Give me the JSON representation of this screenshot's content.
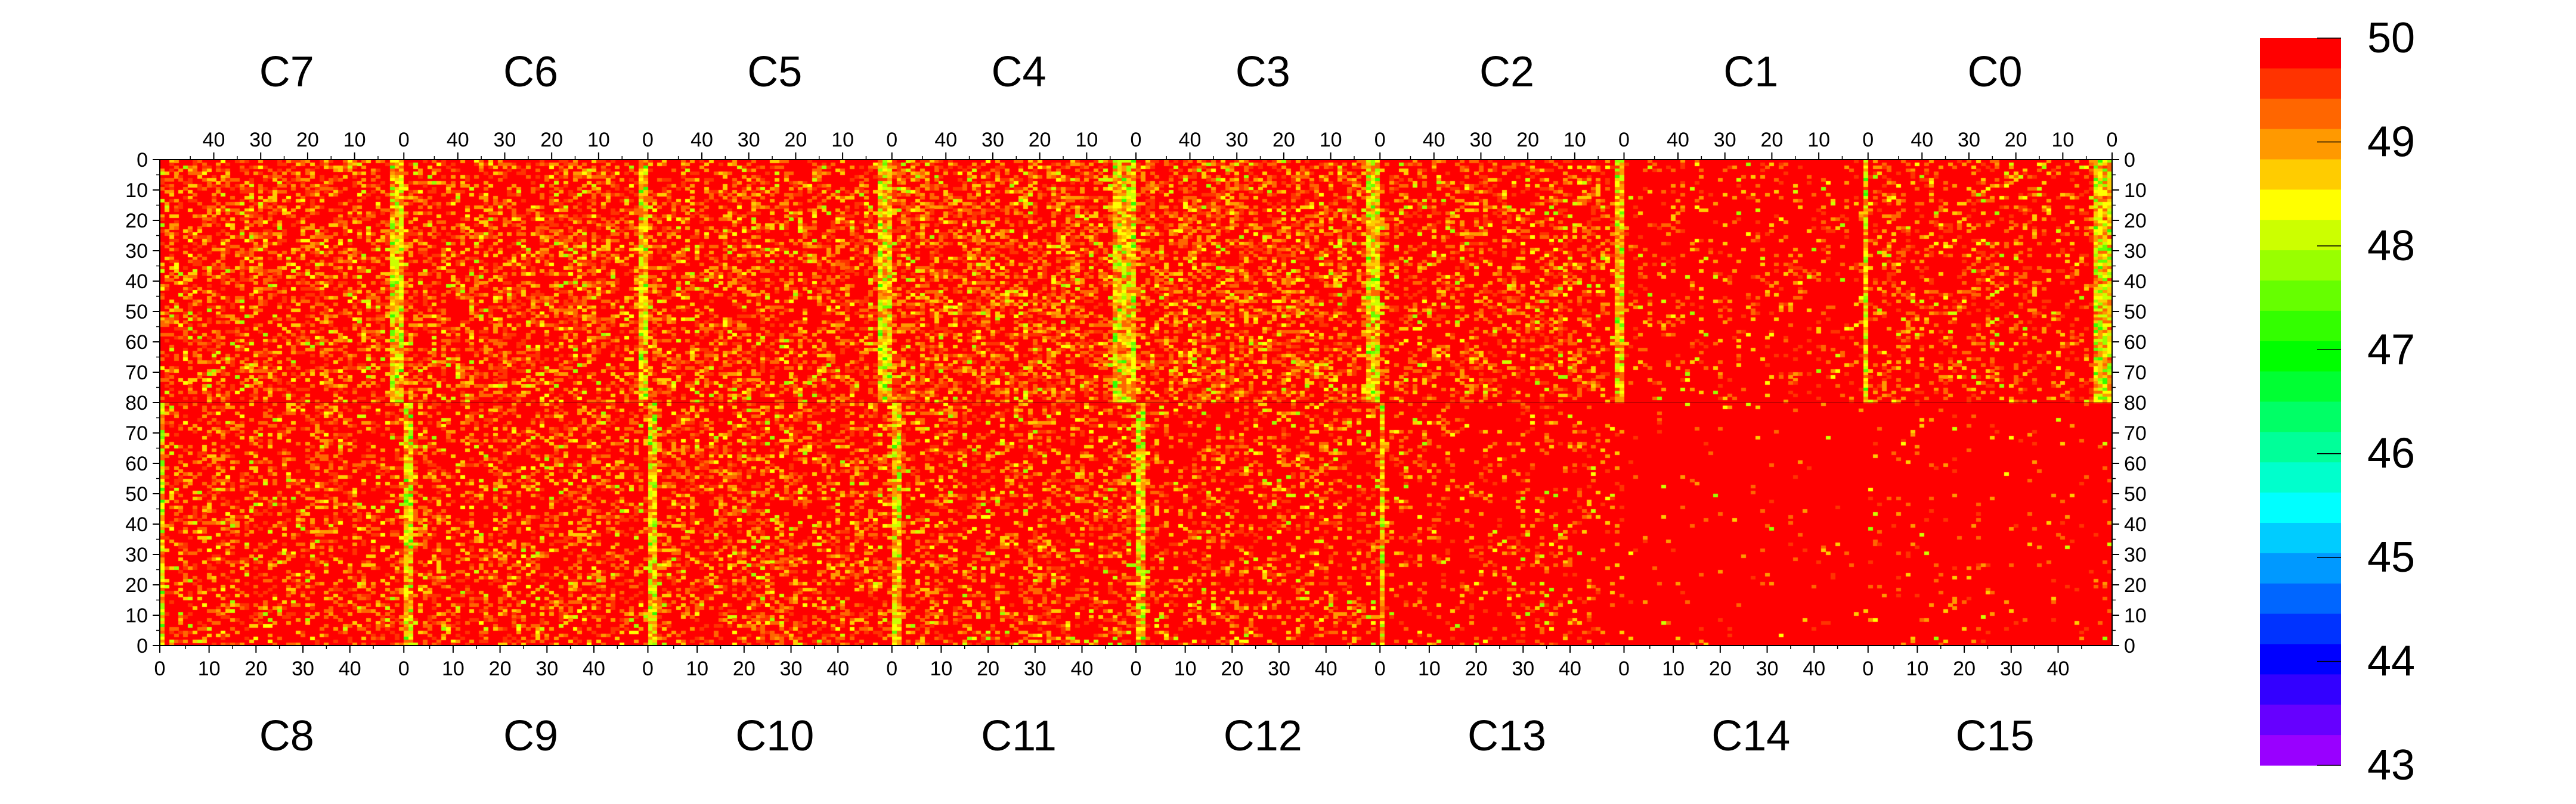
{
  "chart_data": {
    "type": "heatmap",
    "title": "",
    "xlabel": "",
    "ylabel": "",
    "top_chips": [
      "C7",
      "C6",
      "C5",
      "C4",
      "C3",
      "C2",
      "C1",
      "C0"
    ],
    "bottom_chips": [
      "C8",
      "C9",
      "C10",
      "C11",
      "C12",
      "C13",
      "C14",
      "C15"
    ],
    "top_x_tick_labels": [
      "40",
      "30",
      "20",
      "10",
      "0"
    ],
    "bottom_x_tick_labels": [
      "0",
      "10",
      "20",
      "30",
      "40"
    ],
    "y_tick_labels_top_half": [
      "0",
      "10",
      "20",
      "30",
      "40",
      "50",
      "60",
      "70",
      "80"
    ],
    "y_tick_labels_bottom_half": [
      "70",
      "60",
      "50",
      "40",
      "30",
      "20",
      "10",
      "0"
    ],
    "columns_per_chip": 52,
    "rows_per_half": 80,
    "zlim": [
      43,
      50
    ],
    "colorbar_tick_labels": [
      "50",
      "49",
      "48",
      "47",
      "46",
      "45",
      "44",
      "43"
    ],
    "colorbar_colors": [
      "#ff0000",
      "#ff3300",
      "#ff6600",
      "#ff9900",
      "#ffcc00",
      "#ffff00",
      "#ccff00",
      "#99ff00",
      "#66ff00",
      "#33ff00",
      "#00ff00",
      "#00ff33",
      "#00ff66",
      "#00ff99",
      "#00ffcc",
      "#00ffff",
      "#00ccff",
      "#0099ff",
      "#0066ff",
      "#0033ff",
      "#0000ff",
      "#3300ff",
      "#6600ff",
      "#9900ff"
    ],
    "chip_noise_levels": {
      "C7": 0.38,
      "C6": 0.38,
      "C5": 0.36,
      "C4": 0.44,
      "C3": 0.42,
      "C2": 0.3,
      "C1": 0.12,
      "C0": 0.22,
      "C8": 0.3,
      "C9": 0.32,
      "C10": 0.34,
      "C11": 0.3,
      "C12": 0.24,
      "C13": 0.14,
      "C14": 0.02,
      "C15": 0.04
    },
    "chip_low_columns": {
      "C7": [
        49,
        50,
        51
      ],
      "C6": [
        50,
        51
      ],
      "C5": [
        49,
        50,
        51
      ],
      "C4": [
        47,
        48,
        49,
        50,
        51
      ],
      "C3": [
        49,
        50,
        51
      ],
      "C2": [
        50,
        51
      ],
      "C1": [
        51
      ],
      "C0": [
        48,
        49,
        50,
        51
      ],
      "C8": [
        0
      ],
      "C9": [
        0,
        1
      ],
      "C10": [
        0,
        1
      ],
      "C11": [
        0,
        1
      ],
      "C12": [
        0,
        1
      ],
      "C13": [
        0
      ],
      "C14": [],
      "C15": []
    },
    "legend": "right",
    "grid": false
  }
}
